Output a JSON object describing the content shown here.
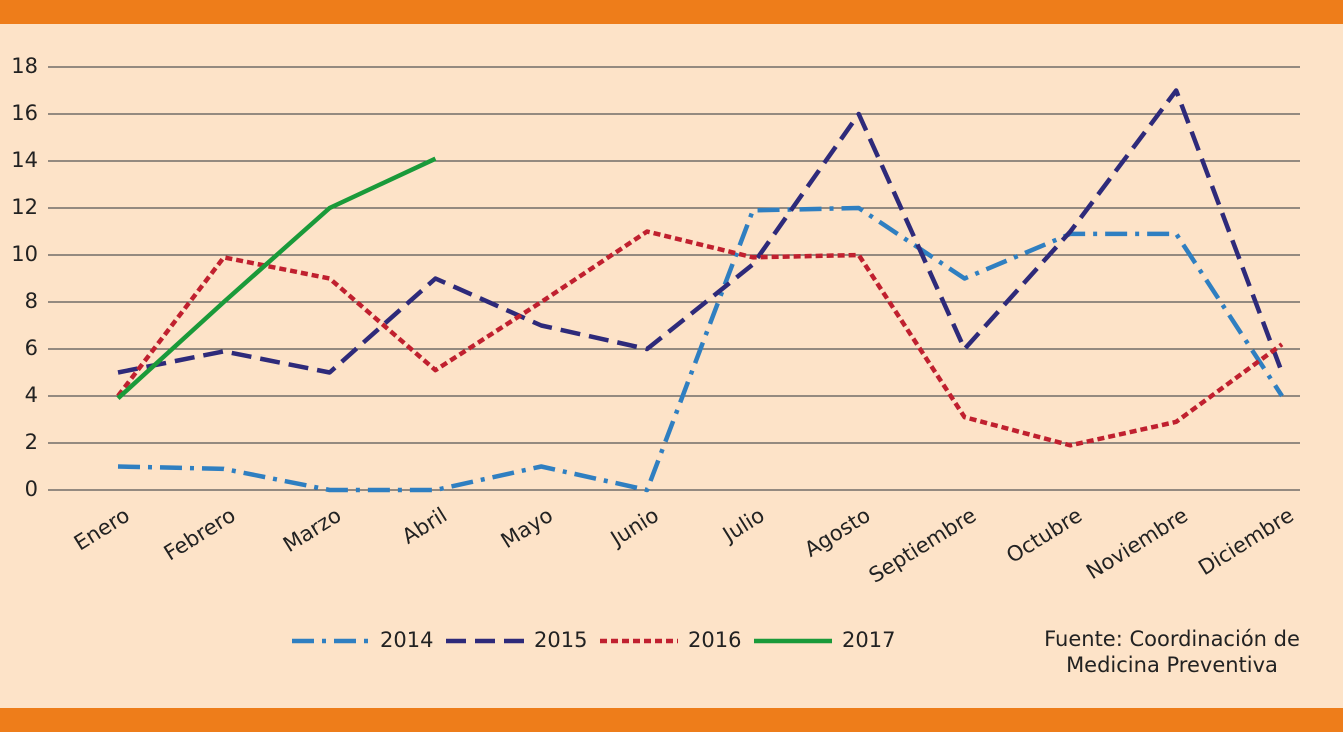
{
  "chart_data": {
    "type": "line",
    "categories": [
      "Enero",
      "Febrero",
      "Marzo",
      "Abril",
      "Mayo",
      "Junio",
      "Julio",
      "Agosto",
      "Septiembre",
      "Octubre",
      "Noviembre",
      "Diciembre"
    ],
    "series": [
      {
        "name": "2014",
        "color": "#2f7fc1",
        "dash": "dashdot",
        "values": [
          1,
          0.9,
          0,
          0,
          1,
          0,
          11.9,
          12,
          9,
          10.9,
          10.9,
          4
        ]
      },
      {
        "name": "2015",
        "color": "#2e2a7a",
        "dash": "dash",
        "values": [
          5,
          5.9,
          5,
          9,
          7,
          6,
          9.6,
          16,
          6,
          11,
          17,
          5
        ]
      },
      {
        "name": "2016",
        "color": "#c0202f",
        "dash": "dot",
        "values": [
          4,
          9.9,
          9,
          5.1,
          8,
          11,
          9.9,
          10,
          3.1,
          1.9,
          2.9,
          6.2
        ]
      },
      {
        "name": "2017",
        "color": "#1a9a3a",
        "dash": "solid",
        "values": [
          3.9,
          8,
          12,
          14.1,
          null,
          null,
          null,
          null,
          null,
          null,
          null,
          null
        ]
      }
    ],
    "ylim": [
      0,
      18
    ],
    "yticks": [
      0,
      2,
      4,
      6,
      8,
      10,
      12,
      14,
      16,
      18
    ],
    "grid": true,
    "source": [
      "Fuente: Coordinación de",
      "Medicina Preventiva"
    ]
  }
}
